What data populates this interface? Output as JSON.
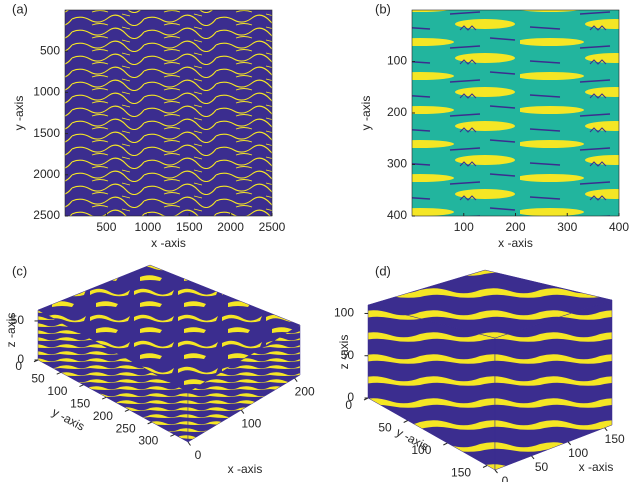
{
  "chart_data": [
    {
      "type": "image",
      "panel_label": "(a)",
      "xlabel": "x -axis",
      "ylabel": "y -axis",
      "xlim": [
        0,
        2500
      ],
      "ylim": [
        2500,
        0
      ],
      "xticks": [
        500,
        1000,
        1500,
        2000,
        2500
      ],
      "yticks": [
        500,
        1000,
        1500,
        2000,
        2500
      ],
      "colors": [
        "#3b2d8f",
        "#f5e625"
      ]
    },
    {
      "type": "image",
      "panel_label": "(b)",
      "xlabel": "x -axis",
      "ylabel": "y -axis",
      "xlim": [
        0,
        400
      ],
      "ylim": [
        400,
        0
      ],
      "xticks": [
        100,
        200,
        300,
        400
      ],
      "yticks": [
        100,
        200,
        300,
        400
      ],
      "colors": [
        "#22b59e",
        "#f5e625",
        "#3b2d8f"
      ]
    },
    {
      "type": "volume",
      "panel_label": "(c)",
      "xlabel": "x -axis",
      "ylabel": "y -axis",
      "zlabel": "z -axis",
      "xlim": [
        0,
        210
      ],
      "ylim": [
        0,
        330
      ],
      "zlim": [
        0,
        64
      ],
      "xticks": [
        0,
        100,
        200
      ],
      "yticks": [
        0,
        50,
        100,
        150,
        200,
        250,
        300
      ],
      "zticks": [
        0,
        50
      ],
      "colors": [
        "#3b2d8f",
        "#f5e625"
      ]
    },
    {
      "type": "volume",
      "panel_label": "(d)",
      "xlabel": "x -axis",
      "ylabel": "y -axis",
      "zlabel": "z -axis",
      "xlim": [
        0,
        160
      ],
      "ylim": [
        0,
        160
      ],
      "zlim": [
        0,
        110
      ],
      "xticks": [
        0,
        50,
        100,
        150
      ],
      "yticks": [
        0,
        50,
        100,
        150
      ],
      "zticks": [
        0,
        50,
        100
      ],
      "colors": [
        "#3b2d8f",
        "#f5e625"
      ]
    }
  ]
}
